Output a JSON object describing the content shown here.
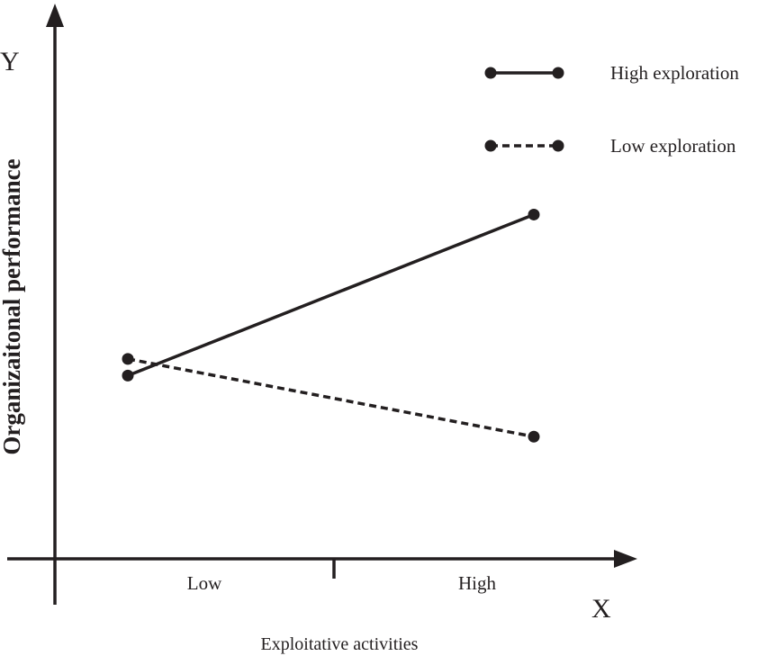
{
  "chart_data": {
    "type": "line",
    "categories": [
      "Low",
      "High"
    ],
    "series": [
      {
        "name": "High exploration",
        "values": [
          0.33,
          0.62
        ],
        "style": "solid",
        "color": "#231f20"
      },
      {
        "name": "Low exploration",
        "values": [
          0.36,
          0.22
        ],
        "style": "dashed",
        "color": "#231f20"
      }
    ],
    "title": "",
    "x_axis_letter": "X",
    "y_axis_letter": "Y",
    "xlabel": "Exploitative activities",
    "ylabel": "Organizaitonal performance",
    "ylim": [
      0,
      1
    ],
    "grid": false,
    "legend_position": "top-right"
  }
}
